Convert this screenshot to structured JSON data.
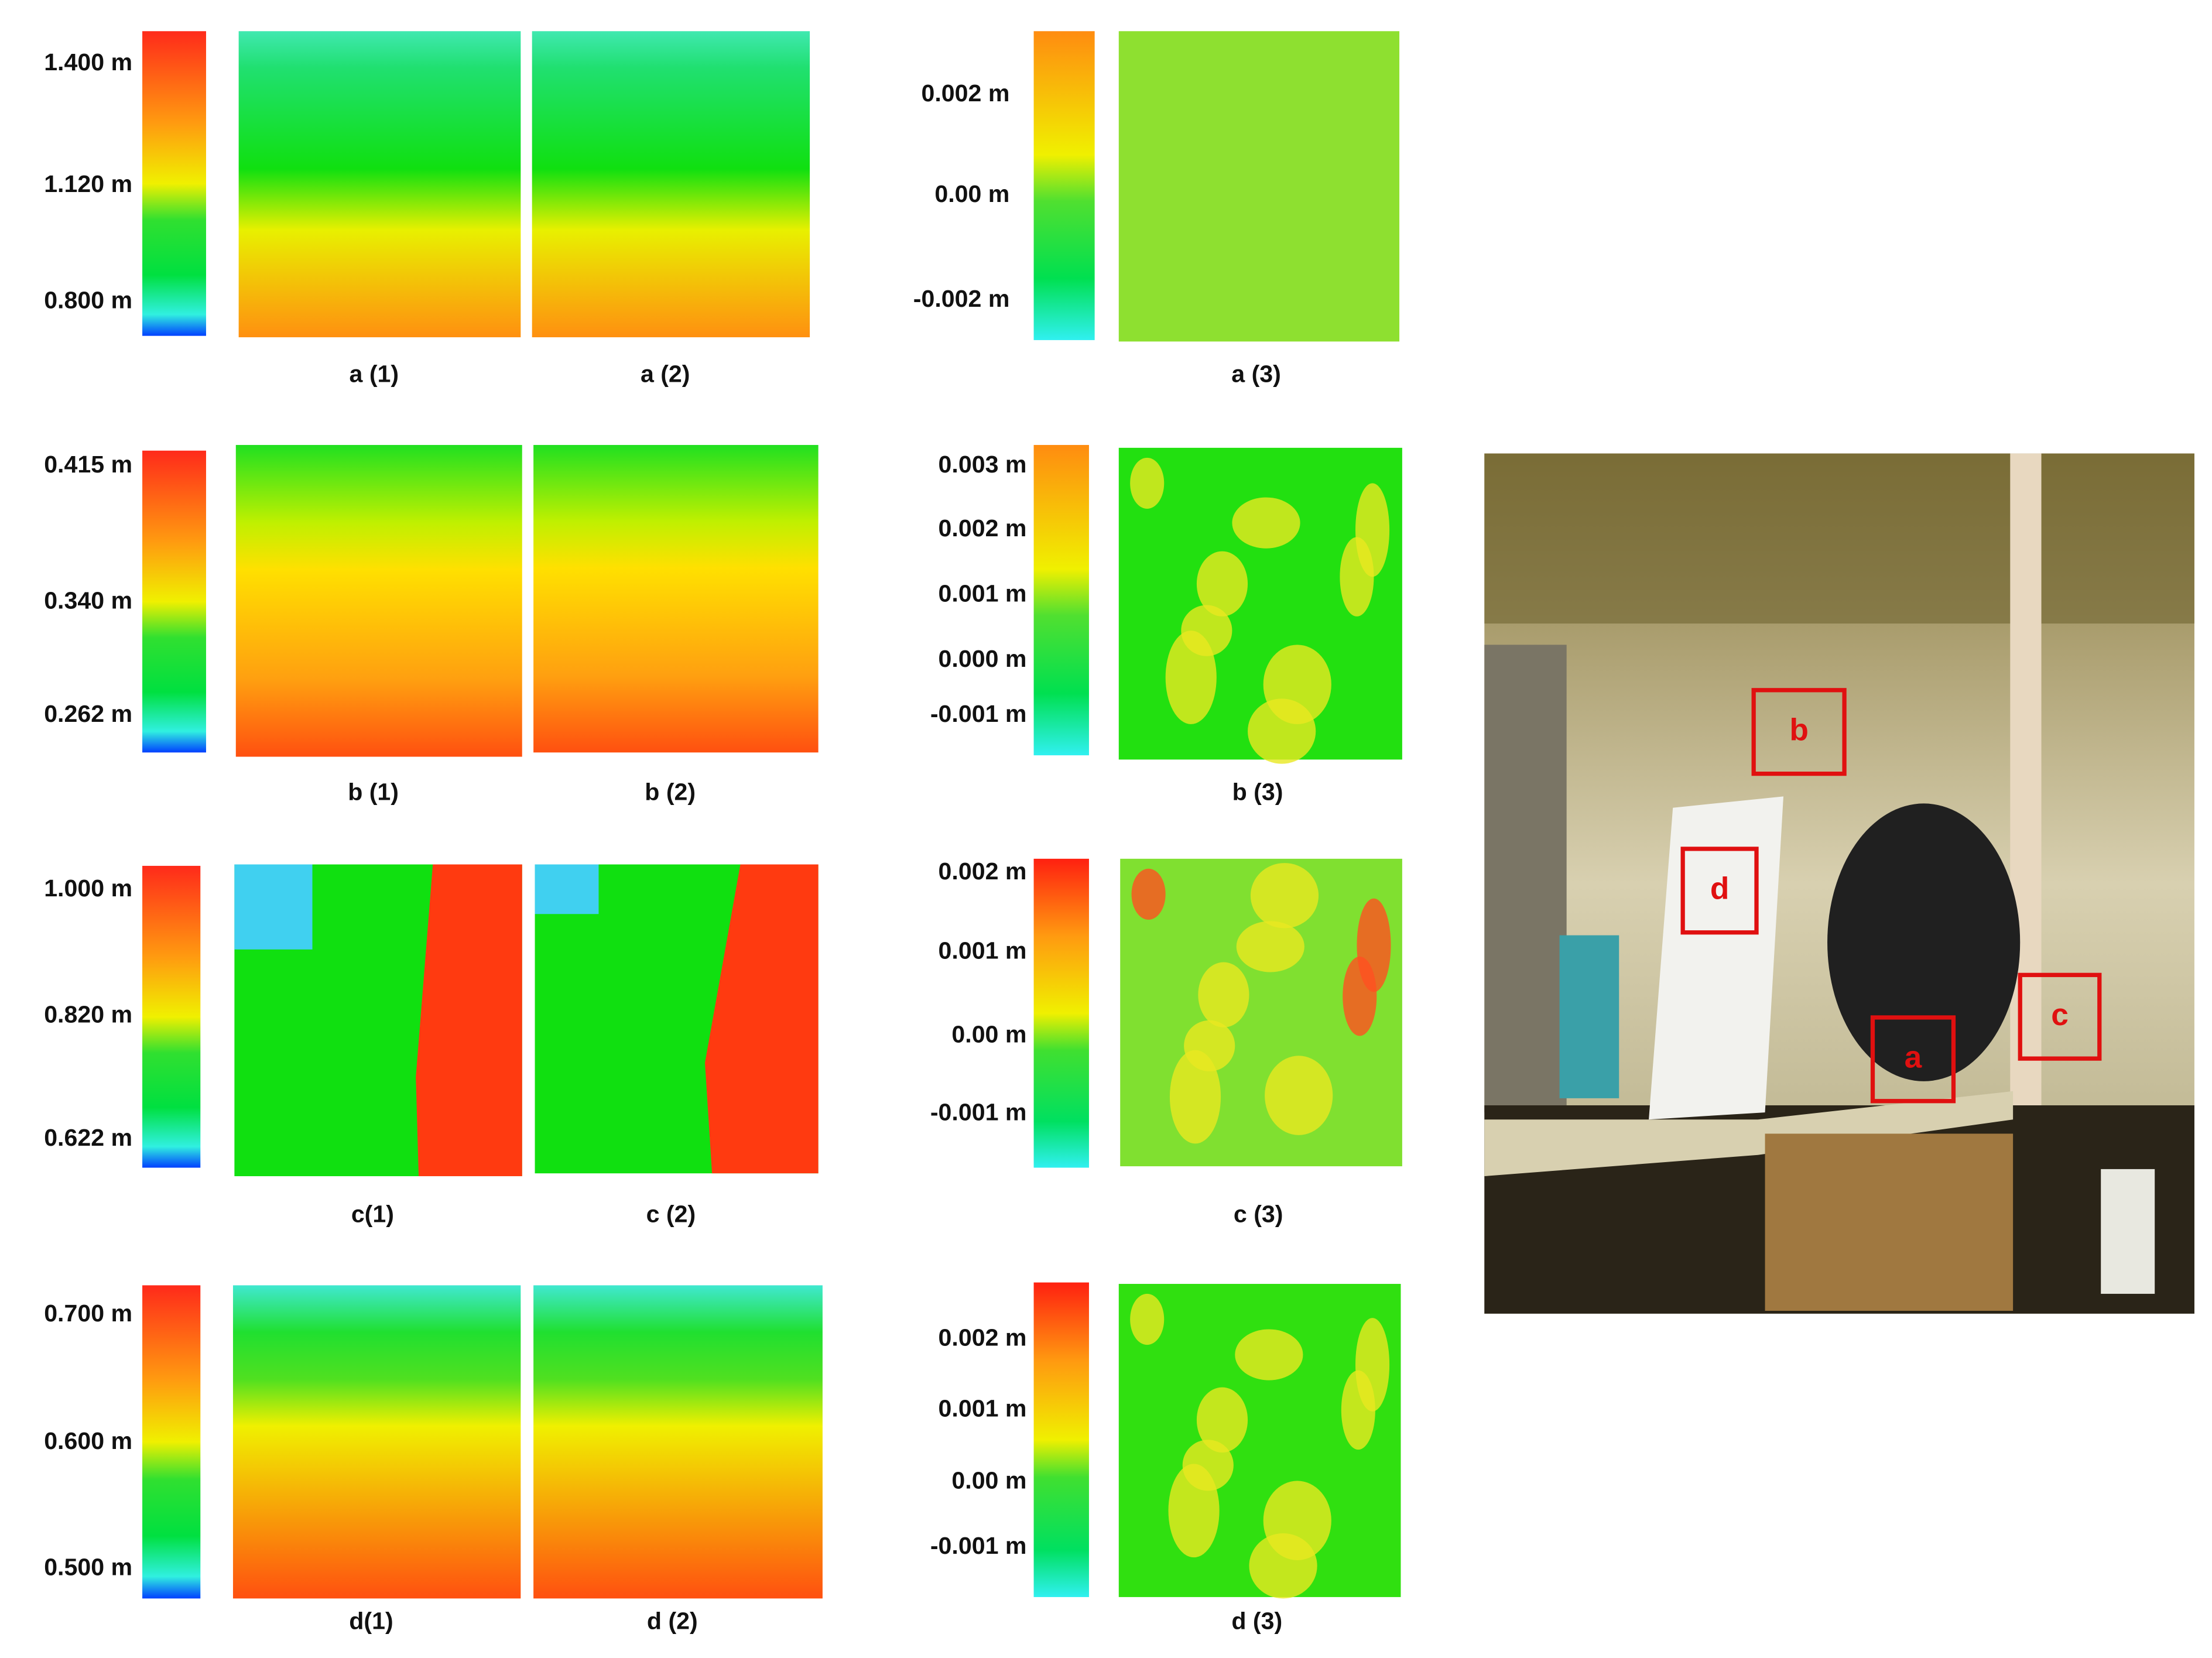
{
  "rows": [
    {
      "depth_scale": [
        "1.400 m",
        "1.120 m",
        "0.800 m"
      ],
      "diff_scale": [
        "0.002 m",
        "0.00 m",
        "-0.002 m"
      ],
      "captions": [
        "a (1)",
        "a (2)",
        "a (3)"
      ]
    },
    {
      "depth_scale": [
        "0.415 m",
        "0.340 m",
        "0.262 m"
      ],
      "diff_scale": [
        "0.003 m",
        "0.002 m",
        "0.001 m",
        "0.000 m",
        "-0.001 m"
      ],
      "captions": [
        "b (1)",
        "b (2)",
        "b (3)"
      ]
    },
    {
      "depth_scale": [
        "1.000 m",
        "0.820 m",
        "0.622 m"
      ],
      "diff_scale": [
        "0.002 m",
        "0.001 m",
        "0.00 m",
        "-0.001 m"
      ],
      "captions": [
        "c(1)",
        "c (2)",
        "c (3)"
      ]
    },
    {
      "depth_scale": [
        "0.700 m",
        "0.600 m",
        "0.500 m"
      ],
      "diff_scale": [
        "0.002 m",
        "0.001 m",
        "0.00 m",
        "-0.001 m"
      ],
      "captions": [
        "d(1)",
        "d (2)",
        "d (3)"
      ]
    }
  ],
  "photo": {
    "markers": [
      "a",
      "b",
      "c",
      "d"
    ]
  }
}
